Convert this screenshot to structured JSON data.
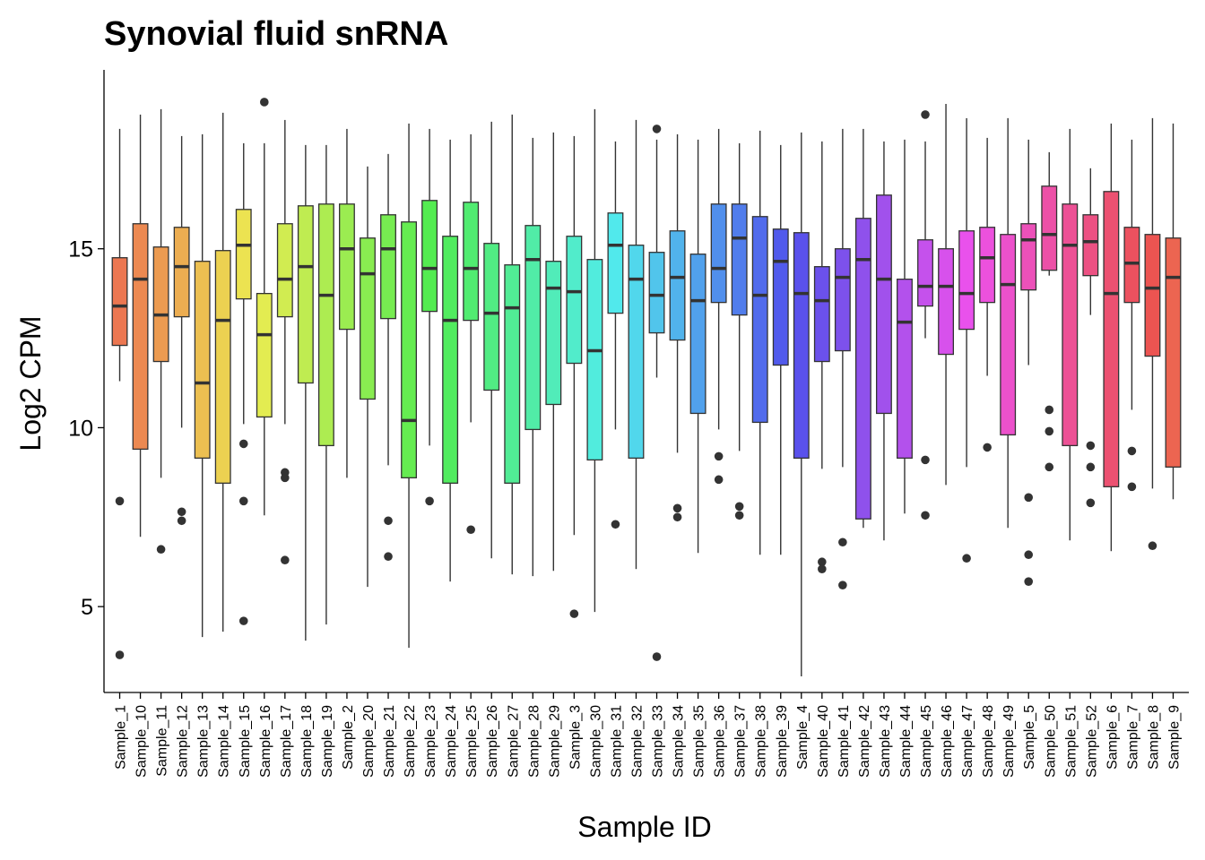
{
  "chart_data": {
    "type": "boxplot",
    "title": "Synovial fluid snRNA",
    "xlabel": "Sample ID",
    "ylabel": "Log2 CPM",
    "ylim": [
      2.6,
      20.0
    ],
    "yticks": [
      5,
      10,
      15
    ],
    "grid": false,
    "legend": "none",
    "categories": [
      "Sample_1",
      "Sample_10",
      "Sample_11",
      "Sample_12",
      "Sample_13",
      "Sample_14",
      "Sample_15",
      "Sample_16",
      "Sample_17",
      "Sample_18",
      "Sample_19",
      "Sample_2",
      "Sample_20",
      "Sample_21",
      "Sample_22",
      "Sample_23",
      "Sample_24",
      "Sample_25",
      "Sample_26",
      "Sample_27",
      "Sample_28",
      "Sample_29",
      "Sample_3",
      "Sample_30",
      "Sample_31",
      "Sample_32",
      "Sample_33",
      "Sample_34",
      "Sample_35",
      "Sample_36",
      "Sample_37",
      "Sample_38",
      "Sample_39",
      "Sample_4",
      "Sample_40",
      "Sample_41",
      "Sample_42",
      "Sample_43",
      "Sample_44",
      "Sample_45",
      "Sample_46",
      "Sample_47",
      "Sample_48",
      "Sample_49",
      "Sample_5",
      "Sample_50",
      "Sample_51",
      "Sample_52",
      "Sample_6",
      "Sample_7",
      "Sample_8",
      "Sample_9"
    ],
    "boxes": [
      {
        "low": 11.3,
        "q1": 12.3,
        "median": 13.4,
        "q3": 14.75,
        "high": 18.35,
        "outliers": [
          7.95,
          3.65
        ]
      },
      {
        "low": 6.95,
        "q1": 9.4,
        "median": 14.15,
        "q3": 15.7,
        "high": 18.75,
        "outliers": []
      },
      {
        "low": 8.6,
        "q1": 11.85,
        "median": 13.15,
        "q3": 15.05,
        "high": 18.9,
        "outliers": [
          6.6
        ]
      },
      {
        "low": 10.0,
        "q1": 13.1,
        "median": 14.5,
        "q3": 15.6,
        "high": 18.15,
        "outliers": [
          7.65,
          7.4
        ]
      },
      {
        "low": 4.15,
        "q1": 9.15,
        "median": 11.25,
        "q3": 14.65,
        "high": 18.2,
        "outliers": []
      },
      {
        "low": 4.3,
        "q1": 8.45,
        "median": 13.0,
        "q3": 14.95,
        "high": 18.8,
        "outliers": []
      },
      {
        "low": 10.1,
        "q1": 13.6,
        "median": 15.1,
        "q3": 16.1,
        "high": 17.95,
        "outliers": [
          9.55,
          7.95,
          4.6
        ]
      },
      {
        "low": 7.55,
        "q1": 10.3,
        "median": 12.6,
        "q3": 13.75,
        "high": 17.95,
        "outliers": [
          19.1
        ]
      },
      {
        "low": 10.1,
        "q1": 13.1,
        "median": 14.15,
        "q3": 15.7,
        "high": 18.6,
        "outliers": [
          8.75,
          8.6,
          6.3
        ]
      },
      {
        "low": 4.05,
        "q1": 11.25,
        "median": 14.5,
        "q3": 16.2,
        "high": 17.9,
        "outliers": []
      },
      {
        "low": 4.5,
        "q1": 9.5,
        "median": 13.7,
        "q3": 16.25,
        "high": 17.9,
        "outliers": []
      },
      {
        "low": 8.6,
        "q1": 12.75,
        "median": 15.0,
        "q3": 16.25,
        "high": 18.35,
        "outliers": []
      },
      {
        "low": 5.55,
        "q1": 10.8,
        "median": 14.3,
        "q3": 15.3,
        "high": 17.3,
        "outliers": []
      },
      {
        "low": 8.95,
        "q1": 13.05,
        "median": 15.0,
        "q3": 15.95,
        "high": 17.65,
        "outliers": [
          7.4,
          6.4
        ]
      },
      {
        "low": 3.85,
        "q1": 8.6,
        "median": 10.2,
        "q3": 15.75,
        "high": 18.5,
        "outliers": []
      },
      {
        "low": 9.5,
        "q1": 13.25,
        "median": 14.45,
        "q3": 16.35,
        "high": 18.35,
        "outliers": [
          7.95
        ]
      },
      {
        "low": 5.7,
        "q1": 8.45,
        "median": 13.0,
        "q3": 15.35,
        "high": 18.05,
        "outliers": []
      },
      {
        "low": 10.15,
        "q1": 13.0,
        "median": 14.45,
        "q3": 16.3,
        "high": 18.2,
        "outliers": [
          7.15
        ]
      },
      {
        "low": 6.35,
        "q1": 11.05,
        "median": 13.2,
        "q3": 15.15,
        "high": 18.55,
        "outliers": []
      },
      {
        "low": 5.9,
        "q1": 8.45,
        "median": 13.35,
        "q3": 14.55,
        "high": 18.75,
        "outliers": []
      },
      {
        "low": 5.85,
        "q1": 9.95,
        "median": 14.7,
        "q3": 15.65,
        "high": 18.1,
        "outliers": []
      },
      {
        "low": 6.0,
        "q1": 10.65,
        "median": 13.9,
        "q3": 14.65,
        "high": 18.25,
        "outliers": []
      },
      {
        "low": 7.0,
        "q1": 11.8,
        "median": 13.8,
        "q3": 15.35,
        "high": 18.15,
        "outliers": [
          4.8
        ]
      },
      {
        "low": 4.85,
        "q1": 9.1,
        "median": 12.15,
        "q3": 14.7,
        "high": 18.9,
        "outliers": []
      },
      {
        "low": 9.95,
        "q1": 13.2,
        "median": 15.1,
        "q3": 16.0,
        "high": 18.0,
        "outliers": [
          7.3
        ]
      },
      {
        "low": 6.05,
        "q1": 9.15,
        "median": 14.15,
        "q3": 15.1,
        "high": 18.6,
        "outliers": []
      },
      {
        "low": 11.4,
        "q1": 12.65,
        "median": 13.7,
        "q3": 14.9,
        "high": 18.05,
        "outliers": [
          18.35,
          3.6
        ]
      },
      {
        "low": 9.3,
        "q1": 12.45,
        "median": 14.2,
        "q3": 15.5,
        "high": 18.2,
        "outliers": [
          7.75,
          7.5
        ]
      },
      {
        "low": 6.5,
        "q1": 10.4,
        "median": 13.55,
        "q3": 14.85,
        "high": 18.05,
        "outliers": []
      },
      {
        "low": 9.95,
        "q1": 13.5,
        "median": 14.45,
        "q3": 16.25,
        "high": 18.35,
        "outliers": [
          9.2,
          8.55
        ]
      },
      {
        "low": 9.35,
        "q1": 13.15,
        "median": 15.3,
        "q3": 16.25,
        "high": 17.95,
        "outliers": [
          7.8,
          7.55
        ]
      },
      {
        "low": 6.45,
        "q1": 10.15,
        "median": 13.7,
        "q3": 15.9,
        "high": 18.3,
        "outliers": []
      },
      {
        "low": 6.45,
        "q1": 11.75,
        "median": 14.65,
        "q3": 15.55,
        "high": 17.9,
        "outliers": []
      },
      {
        "low": 3.05,
        "q1": 9.15,
        "median": 13.75,
        "q3": 15.45,
        "high": 18.25,
        "outliers": []
      },
      {
        "low": 8.85,
        "q1": 11.85,
        "median": 13.55,
        "q3": 14.5,
        "high": 18.0,
        "outliers": [
          6.25,
          6.05
        ]
      },
      {
        "low": 8.9,
        "q1": 12.15,
        "median": 14.2,
        "q3": 15.0,
        "high": 18.35,
        "outliers": [
          6.8,
          5.6
        ]
      },
      {
        "low": 7.2,
        "q1": 7.45,
        "median": 14.7,
        "q3": 15.85,
        "high": 18.35,
        "outliers": []
      },
      {
        "low": 6.85,
        "q1": 10.4,
        "median": 14.15,
        "q3": 16.5,
        "high": 18.0,
        "outliers": []
      },
      {
        "low": 7.6,
        "q1": 9.15,
        "median": 12.95,
        "q3": 14.15,
        "high": 18.05,
        "outliers": []
      },
      {
        "low": 12.5,
        "q1": 13.4,
        "median": 13.95,
        "q3": 15.25,
        "high": 18.0,
        "outliers": [
          18.75,
          9.1,
          7.55
        ]
      },
      {
        "low": 8.4,
        "q1": 12.05,
        "median": 13.95,
        "q3": 15.0,
        "high": 19.05,
        "outliers": []
      },
      {
        "low": 8.9,
        "q1": 12.75,
        "median": 13.75,
        "q3": 15.5,
        "high": 18.65,
        "outliers": [
          6.35
        ]
      },
      {
        "low": 11.45,
        "q1": 13.5,
        "median": 14.75,
        "q3": 15.6,
        "high": 18.1,
        "outliers": [
          9.45
        ]
      },
      {
        "low": 7.2,
        "q1": 9.8,
        "median": 14.0,
        "q3": 15.4,
        "high": 18.65,
        "outliers": []
      },
      {
        "low": 11.75,
        "q1": 13.85,
        "median": 15.25,
        "q3": 15.7,
        "high": 18.05,
        "outliers": [
          8.05,
          6.45,
          5.7
        ]
      },
      {
        "low": 14.25,
        "q1": 14.4,
        "median": 15.4,
        "q3": 16.75,
        "high": 17.7,
        "outliers": [
          10.5,
          9.9,
          8.9
        ]
      },
      {
        "low": 6.85,
        "q1": 9.5,
        "median": 15.1,
        "q3": 16.25,
        "high": 18.35,
        "outliers": []
      },
      {
        "low": 13.15,
        "q1": 14.25,
        "median": 15.2,
        "q3": 15.95,
        "high": 17.25,
        "outliers": [
          9.5,
          8.9,
          7.9
        ]
      },
      {
        "low": 6.55,
        "q1": 8.35,
        "median": 13.75,
        "q3": 16.6,
        "high": 18.5,
        "outliers": []
      },
      {
        "low": 10.5,
        "q1": 13.5,
        "median": 14.6,
        "q3": 15.6,
        "high": 18.05,
        "outliers": [
          9.35,
          8.35
        ]
      },
      {
        "low": 8.3,
        "q1": 12.0,
        "median": 13.9,
        "q3": 15.4,
        "high": 18.65,
        "outliers": [
          6.7
        ]
      },
      {
        "low": 8.0,
        "q1": 8.9,
        "median": 14.2,
        "q3": 15.3,
        "high": 18.5,
        "outliers": []
      }
    ]
  }
}
